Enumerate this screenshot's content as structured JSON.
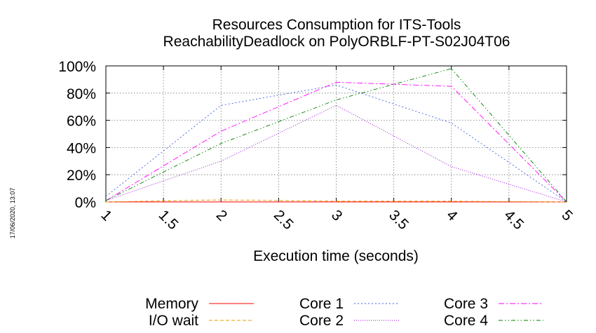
{
  "chart_data": {
    "type": "line",
    "title": "Resources Consumption for ITS-Tools",
    "subtitle": "ReachabilityDeadlock on PolyORBLF-PT-S02J04T06",
    "xlabel": "Execution time (seconds)",
    "ylabel": "",
    "xlim": [
      1,
      5
    ],
    "ylim": [
      0,
      100
    ],
    "x_ticks": [
      "1",
      "1.5",
      "2",
      "2.5",
      "3",
      "3.5",
      "4",
      "4.5",
      "5"
    ],
    "y_ticks": [
      "0%",
      "20%",
      "40%",
      "60%",
      "80%",
      "100%"
    ],
    "grid": true,
    "legend_position": "bottom",
    "x": [
      1,
      2,
      3,
      4,
      5
    ],
    "series": [
      {
        "name": "Memory",
        "color": "#ff0000",
        "dash": "solid",
        "values": [
          0,
          0,
          0,
          0,
          0
        ]
      },
      {
        "name": "I/O wait",
        "color": "#e0a000",
        "dash": "dash",
        "values": [
          0,
          1.5,
          0.5,
          0.5,
          0
        ]
      },
      {
        "name": "Core 1",
        "color": "#4060e0",
        "dash": "dot",
        "values": [
          4,
          71,
          86,
          58,
          0
        ]
      },
      {
        "name": "Core 2",
        "color": "#9400d3",
        "dash": "dot-fine",
        "values": [
          1,
          30,
          71,
          26,
          0
        ]
      },
      {
        "name": "Core 3",
        "color": "#ff00ff",
        "dash": "dash-dot",
        "values": [
          1,
          52,
          88,
          85,
          0
        ]
      },
      {
        "name": "Core 4",
        "color": "#008000",
        "dash": "dash-dot-dot",
        "values": [
          1,
          43,
          75,
          98,
          0
        ]
      }
    ]
  },
  "timestamp": "17/06/2020, 13:07"
}
